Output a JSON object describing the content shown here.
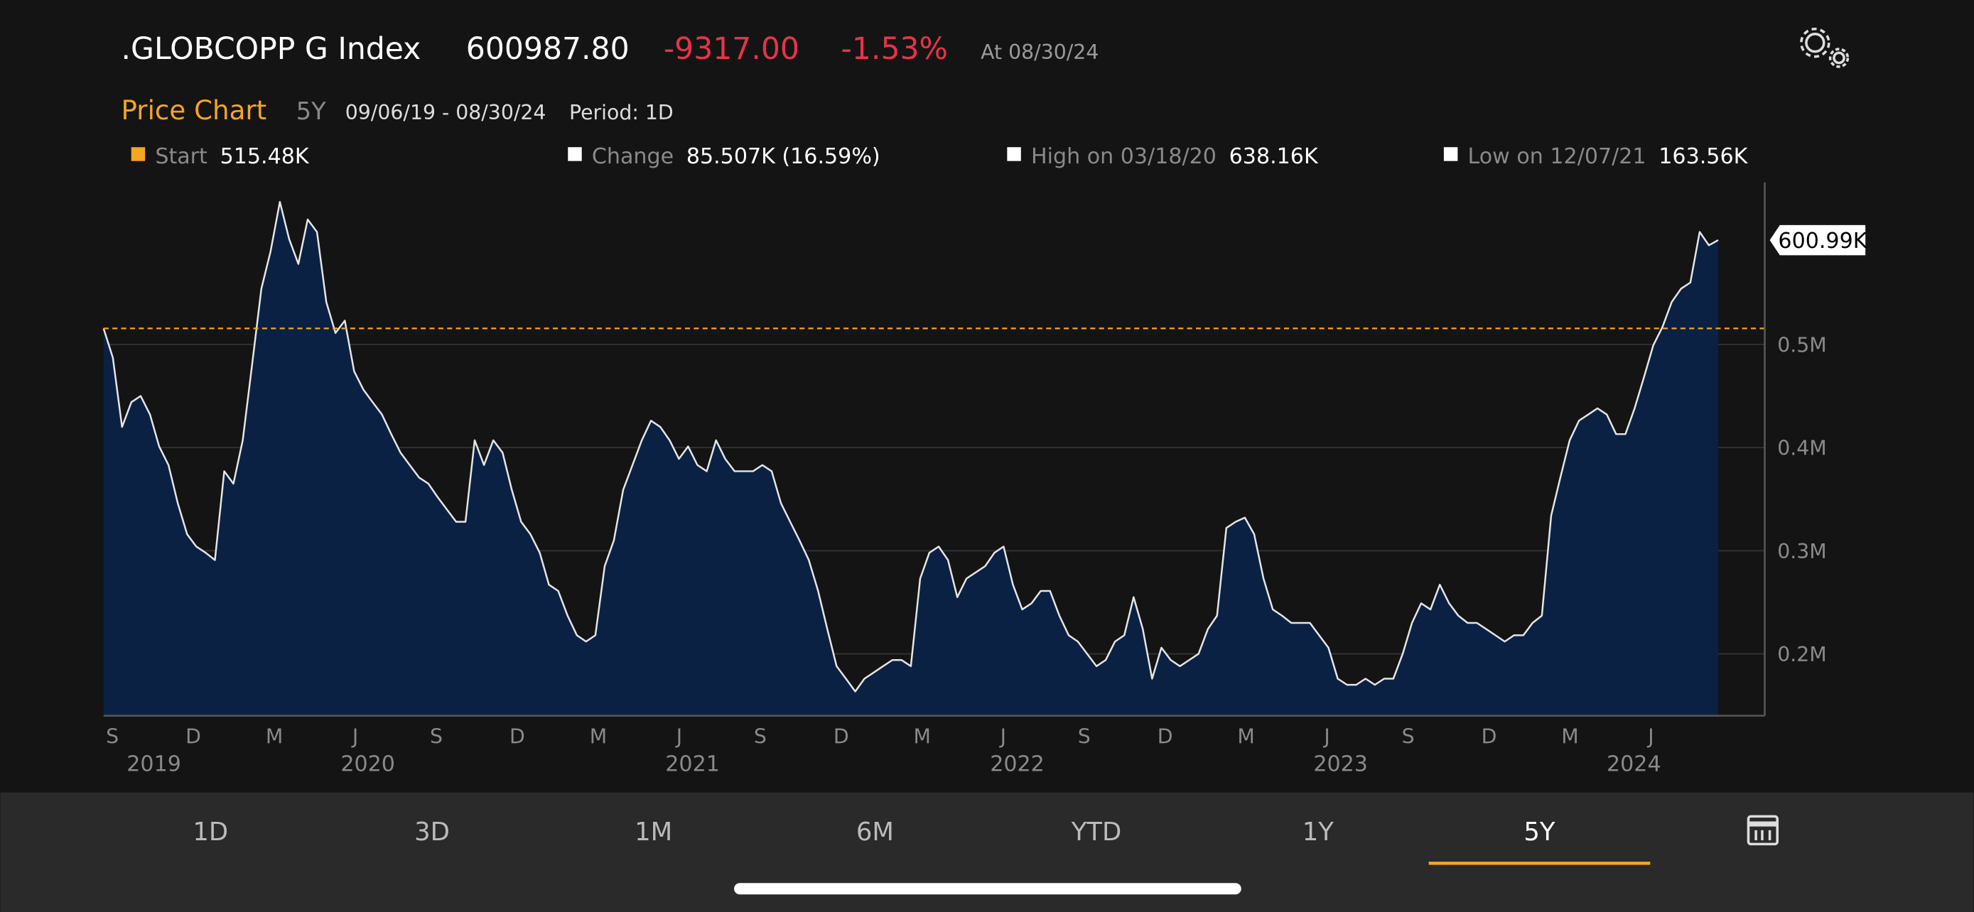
{
  "header": {
    "ticker": ".GLOBCOPP G Index",
    "price": "600987.80",
    "change": "-9317.00",
    "change_pct": "-1.53%",
    "as_of": "At 08/30/24"
  },
  "subheader": {
    "title": "Price Chart",
    "range": "5Y",
    "dates": "09/06/19 - 08/30/24",
    "period": "Period: 1D"
  },
  "stats": [
    {
      "label": "Start",
      "value": "515.48K",
      "color": "#f5a623"
    },
    {
      "label": "Change",
      "value": "85.507K (16.59%)",
      "color": "#ffffff"
    },
    {
      "label": "High on 03/18/20",
      "value": "638.16K",
      "color": "#ffffff"
    },
    {
      "label": "Low on 12/07/21",
      "value": "163.56K",
      "color": "#ffffff"
    }
  ],
  "chart_data": {
    "type": "area",
    "color": "#e6e6e6",
    "fill": "#0b2144",
    "values": [
      515480,
      487000,
      420000,
      444000,
      450000,
      432000,
      401000,
      383000,
      346000,
      316000,
      304000,
      298000,
      291000,
      377000,
      365000,
      407000,
      480000,
      554000,
      590000,
      638160,
      602000,
      578000,
      621000,
      609000,
      541000,
      511000,
      523000,
      474000,
      456000,
      444000,
      432000,
      413000,
      395000,
      383000,
      371000,
      365000,
      352000,
      340000,
      328000,
      328000,
      407000,
      383000,
      407000,
      395000,
      359000,
      328000,
      316000,
      298000,
      267000,
      261000,
      237000,
      218000,
      212000,
      218000,
      285000,
      310000,
      359000,
      383000,
      407000,
      426000,
      420000,
      407000,
      389000,
      401000,
      383000,
      377000,
      407000,
      389000,
      377000,
      377000,
      377000,
      383000,
      377000,
      346000,
      328000,
      310000,
      291000,
      261000,
      224000,
      188000,
      176000,
      163560,
      176000,
      182000,
      188000,
      194000,
      194000,
      188000,
      273000,
      298000,
      304000,
      291000,
      255000,
      273000,
      279000,
      285000,
      298000,
      304000,
      267000,
      243000,
      249000,
      261000,
      261000,
      237000,
      218000,
      212000,
      200000,
      188000,
      194000,
      212000,
      218000,
      255000,
      224000,
      176000,
      206000,
      194000,
      188000,
      194000,
      200000,
      224000,
      237000,
      322000,
      328000,
      332000,
      316000,
      273000,
      243000,
      237000,
      230000,
      230000,
      230000,
      218000,
      206000,
      176000,
      170000,
      170000,
      176000,
      170000,
      176000,
      176000,
      200000,
      230000,
      249000,
      243000,
      267000,
      249000,
      237000,
      230000,
      230000,
      224000,
      218000,
      212000,
      218000,
      218000,
      230000,
      237000,
      334000,
      371000,
      407000,
      426000,
      432000,
      438000,
      432000,
      413000,
      413000,
      438000,
      468000,
      499000,
      517000,
      541000,
      554000,
      560000,
      609000,
      596000,
      600987.8
    ],
    "end_label": "600.99K",
    "reference_line": {
      "value": 515480,
      "color": "#f5a623"
    },
    "ylim": [
      140000,
      657000
    ],
    "yticks": [
      {
        "value": 200000,
        "label": "0.2M"
      },
      {
        "value": 300000,
        "label": "0.3M"
      },
      {
        "value": 400000,
        "label": "0.4M"
      },
      {
        "value": 500000,
        "label": "0.5M"
      }
    ],
    "grid": true,
    "xticks": [
      "S",
      "D",
      "M",
      "J",
      "S",
      "D",
      "M",
      "J",
      "S",
      "D",
      "M",
      "J",
      "S",
      "D",
      "M",
      "J",
      "S",
      "D",
      "M",
      "J"
    ],
    "years": [
      "2019",
      "2020",
      "2021",
      "2022",
      "2023",
      "2024"
    ]
  },
  "tabs": {
    "items": [
      "1D",
      "3D",
      "1M",
      "6M",
      "YTD",
      "1Y",
      "5Y"
    ],
    "selected": 6
  }
}
